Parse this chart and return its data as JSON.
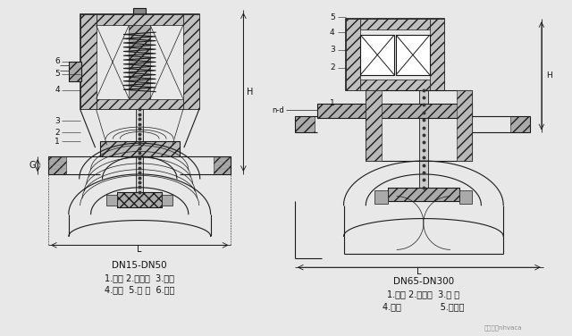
{
  "background_color": "#e8e8e8",
  "fig_width": 6.4,
  "fig_height": 3.76,
  "dpi": 100,
  "left_diagram": {
    "label_title": "DN15-DN50",
    "label_line1": "1.阀体 2.阀塞组  3.弹簧",
    "label_line2": "4.阀盖  5.铁 芯  6.线圈"
  },
  "right_diagram": {
    "label_title": "DN65-DN300",
    "label_line1": "1.阀体 2.阀塞组  3.弹 簧",
    "label_line2": "4.阀盖              5.电磁铁"
  },
  "watermark": "微信号：nhvaca",
  "line_color": "#1a1a1a",
  "text_color": "#111111",
  "label_fontsize": 7.0,
  "number_fontsize": 6.5,
  "title_fontsize": 7.5
}
